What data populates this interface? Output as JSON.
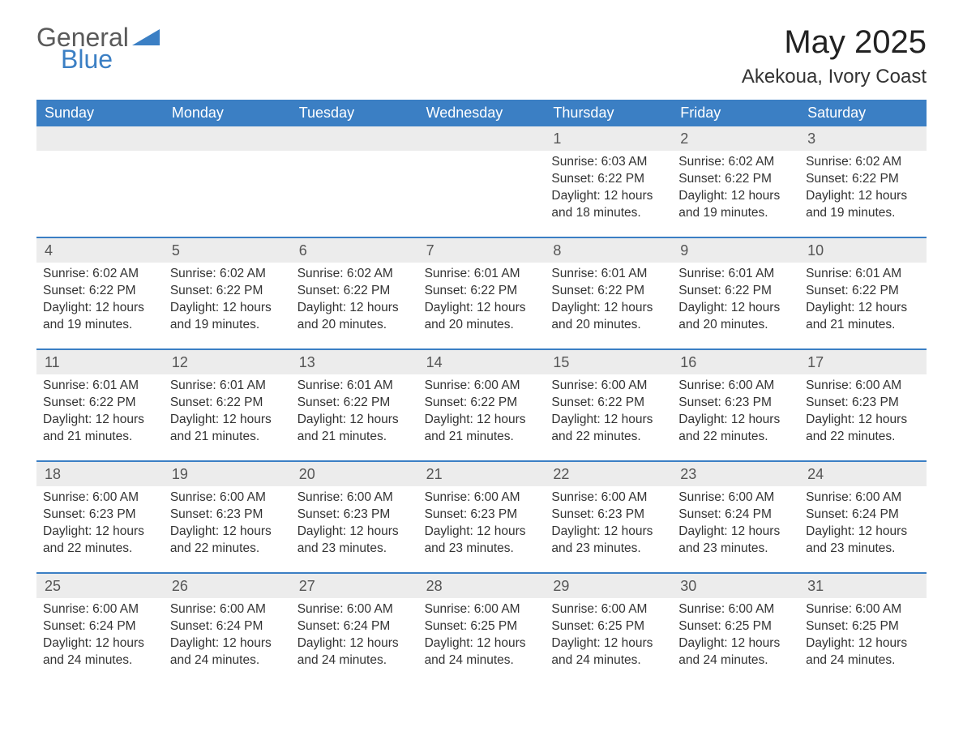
{
  "logo": {
    "text_general": "General",
    "text_blue": "Blue",
    "shape_color": "#3b7fc4"
  },
  "title": "May 2025",
  "subtitle": "Akekoua, Ivory Coast",
  "colors": {
    "header_bg": "#3b7fc4",
    "header_text": "#ffffff",
    "daynum_bg": "#ececec",
    "daynum_border": "#3b7fc4",
    "body_text": "#333333",
    "logo_gray": "#5a5a5a",
    "logo_blue": "#3b7fc4",
    "page_bg": "#ffffff"
  },
  "typography": {
    "title_fontsize": 40,
    "subtitle_fontsize": 24,
    "header_fontsize": 18,
    "daynum_fontsize": 18,
    "body_fontsize": 15.5,
    "font_family": "Arial"
  },
  "layout": {
    "columns": 7,
    "week_start": "Sunday"
  },
  "days_of_week": [
    "Sunday",
    "Monday",
    "Tuesday",
    "Wednesday",
    "Thursday",
    "Friday",
    "Saturday"
  ],
  "labels": {
    "sunrise": "Sunrise:",
    "sunset": "Sunset:",
    "daylight": "Daylight:"
  },
  "weeks": [
    [
      {
        "empty": true
      },
      {
        "empty": true
      },
      {
        "empty": true
      },
      {
        "empty": true
      },
      {
        "day": "1",
        "sunrise": "6:03 AM",
        "sunset": "6:22 PM",
        "daylight": "12 hours and 18 minutes."
      },
      {
        "day": "2",
        "sunrise": "6:02 AM",
        "sunset": "6:22 PM",
        "daylight": "12 hours and 19 minutes."
      },
      {
        "day": "3",
        "sunrise": "6:02 AM",
        "sunset": "6:22 PM",
        "daylight": "12 hours and 19 minutes."
      }
    ],
    [
      {
        "day": "4",
        "sunrise": "6:02 AM",
        "sunset": "6:22 PM",
        "daylight": "12 hours and 19 minutes."
      },
      {
        "day": "5",
        "sunrise": "6:02 AM",
        "sunset": "6:22 PM",
        "daylight": "12 hours and 19 minutes."
      },
      {
        "day": "6",
        "sunrise": "6:02 AM",
        "sunset": "6:22 PM",
        "daylight": "12 hours and 20 minutes."
      },
      {
        "day": "7",
        "sunrise": "6:01 AM",
        "sunset": "6:22 PM",
        "daylight": "12 hours and 20 minutes."
      },
      {
        "day": "8",
        "sunrise": "6:01 AM",
        "sunset": "6:22 PM",
        "daylight": "12 hours and 20 minutes."
      },
      {
        "day": "9",
        "sunrise": "6:01 AM",
        "sunset": "6:22 PM",
        "daylight": "12 hours and 20 minutes."
      },
      {
        "day": "10",
        "sunrise": "6:01 AM",
        "sunset": "6:22 PM",
        "daylight": "12 hours and 21 minutes."
      }
    ],
    [
      {
        "day": "11",
        "sunrise": "6:01 AM",
        "sunset": "6:22 PM",
        "daylight": "12 hours and 21 minutes."
      },
      {
        "day": "12",
        "sunrise": "6:01 AM",
        "sunset": "6:22 PM",
        "daylight": "12 hours and 21 minutes."
      },
      {
        "day": "13",
        "sunrise": "6:01 AM",
        "sunset": "6:22 PM",
        "daylight": "12 hours and 21 minutes."
      },
      {
        "day": "14",
        "sunrise": "6:00 AM",
        "sunset": "6:22 PM",
        "daylight": "12 hours and 21 minutes."
      },
      {
        "day": "15",
        "sunrise": "6:00 AM",
        "sunset": "6:22 PM",
        "daylight": "12 hours and 22 minutes."
      },
      {
        "day": "16",
        "sunrise": "6:00 AM",
        "sunset": "6:23 PM",
        "daylight": "12 hours and 22 minutes."
      },
      {
        "day": "17",
        "sunrise": "6:00 AM",
        "sunset": "6:23 PM",
        "daylight": "12 hours and 22 minutes."
      }
    ],
    [
      {
        "day": "18",
        "sunrise": "6:00 AM",
        "sunset": "6:23 PM",
        "daylight": "12 hours and 22 minutes."
      },
      {
        "day": "19",
        "sunrise": "6:00 AM",
        "sunset": "6:23 PM",
        "daylight": "12 hours and 22 minutes."
      },
      {
        "day": "20",
        "sunrise": "6:00 AM",
        "sunset": "6:23 PM",
        "daylight": "12 hours and 23 minutes."
      },
      {
        "day": "21",
        "sunrise": "6:00 AM",
        "sunset": "6:23 PM",
        "daylight": "12 hours and 23 minutes."
      },
      {
        "day": "22",
        "sunrise": "6:00 AM",
        "sunset": "6:23 PM",
        "daylight": "12 hours and 23 minutes."
      },
      {
        "day": "23",
        "sunrise": "6:00 AM",
        "sunset": "6:24 PM",
        "daylight": "12 hours and 23 minutes."
      },
      {
        "day": "24",
        "sunrise": "6:00 AM",
        "sunset": "6:24 PM",
        "daylight": "12 hours and 23 minutes."
      }
    ],
    [
      {
        "day": "25",
        "sunrise": "6:00 AM",
        "sunset": "6:24 PM",
        "daylight": "12 hours and 24 minutes."
      },
      {
        "day": "26",
        "sunrise": "6:00 AM",
        "sunset": "6:24 PM",
        "daylight": "12 hours and 24 minutes."
      },
      {
        "day": "27",
        "sunrise": "6:00 AM",
        "sunset": "6:24 PM",
        "daylight": "12 hours and 24 minutes."
      },
      {
        "day": "28",
        "sunrise": "6:00 AM",
        "sunset": "6:25 PM",
        "daylight": "12 hours and 24 minutes."
      },
      {
        "day": "29",
        "sunrise": "6:00 AM",
        "sunset": "6:25 PM",
        "daylight": "12 hours and 24 minutes."
      },
      {
        "day": "30",
        "sunrise": "6:00 AM",
        "sunset": "6:25 PM",
        "daylight": "12 hours and 24 minutes."
      },
      {
        "day": "31",
        "sunrise": "6:00 AM",
        "sunset": "6:25 PM",
        "daylight": "12 hours and 24 minutes."
      }
    ]
  ]
}
